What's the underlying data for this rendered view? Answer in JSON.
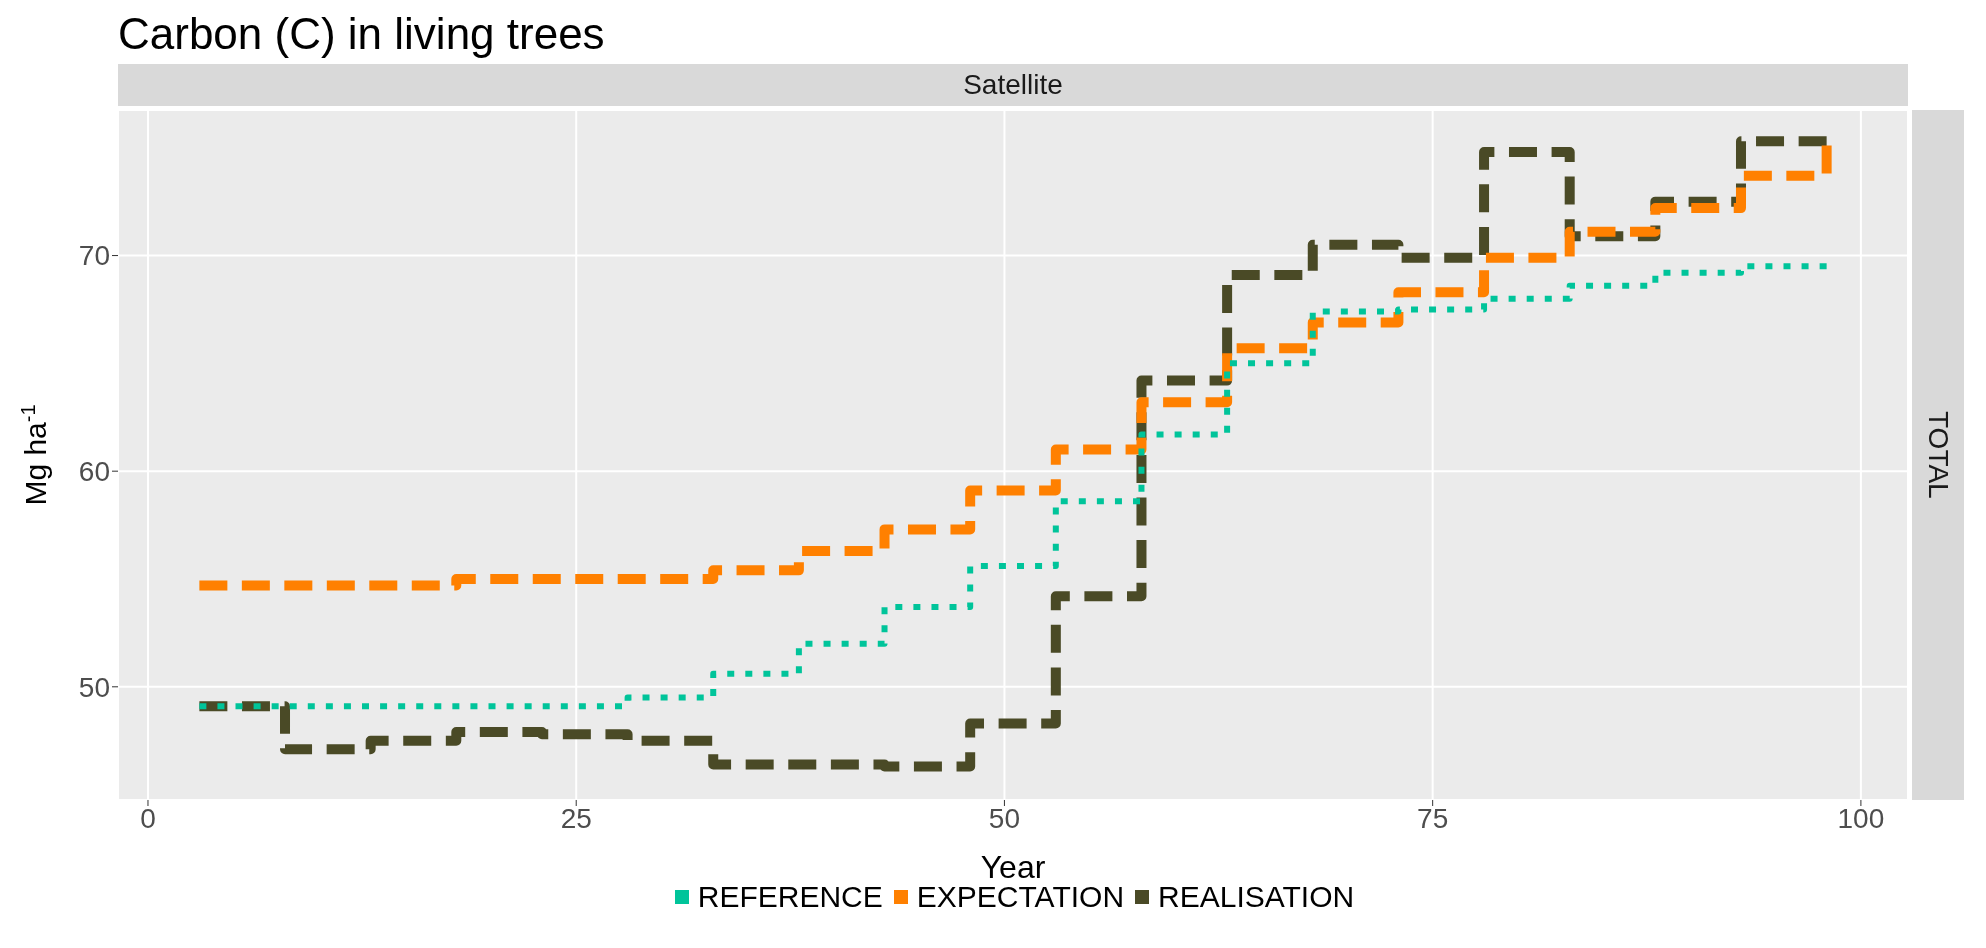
{
  "chart_data": {
    "type": "step",
    "title": "Carbon (C) in living trees",
    "xlabel": "Year",
    "ylabel": "Mg ha$^{-1}$",
    "annotations": [
      "Satellite",
      "TOTAL"
    ],
    "x": [
      3,
      8,
      13,
      18,
      23,
      28,
      33,
      38,
      43,
      48,
      53,
      58,
      63,
      68,
      73,
      78,
      83,
      88,
      93,
      98
    ],
    "series": [
      {
        "name": "REFERENCE",
        "color": "#00c49a",
        "line_style": "dotted",
        "values": [
          49.1,
          49.1,
          49.1,
          49.1,
          49.1,
          49.5,
          50.6,
          52.0,
          53.7,
          55.6,
          58.6,
          61.7,
          65.0,
          67.4,
          67.5,
          68.0,
          68.6,
          69.2,
          69.5,
          69.5
        ]
      },
      {
        "name": "EXPECTATION",
        "color": "#ff8000",
        "line_style": "dashed",
        "values": [
          54.7,
          54.7,
          54.7,
          55.0,
          55.0,
          55.0,
          55.4,
          56.3,
          57.3,
          59.1,
          61.0,
          63.2,
          65.7,
          66.9,
          68.3,
          69.9,
          71.1,
          72.2,
          73.7,
          75.1
        ]
      },
      {
        "name": "REALISATION",
        "color": "#4a4a26",
        "line_style": "dashed",
        "values": [
          49.1,
          47.1,
          47.5,
          47.9,
          47.8,
          47.5,
          46.4,
          46.4,
          46.3,
          48.3,
          54.2,
          64.2,
          69.1,
          70.5,
          69.9,
          74.8,
          70.9,
          72.5,
          75.3,
          75.3
        ]
      }
    ],
    "xlim": [
      -1.75,
      102.75
    ],
    "xticks": [
      0,
      25,
      50,
      75,
      100
    ],
    "ylim": [
      44.75,
      76.75
    ],
    "yticks": [
      50,
      60,
      70
    ],
    "grid": true,
    "legend": "bottom",
    "marker": "none"
  }
}
